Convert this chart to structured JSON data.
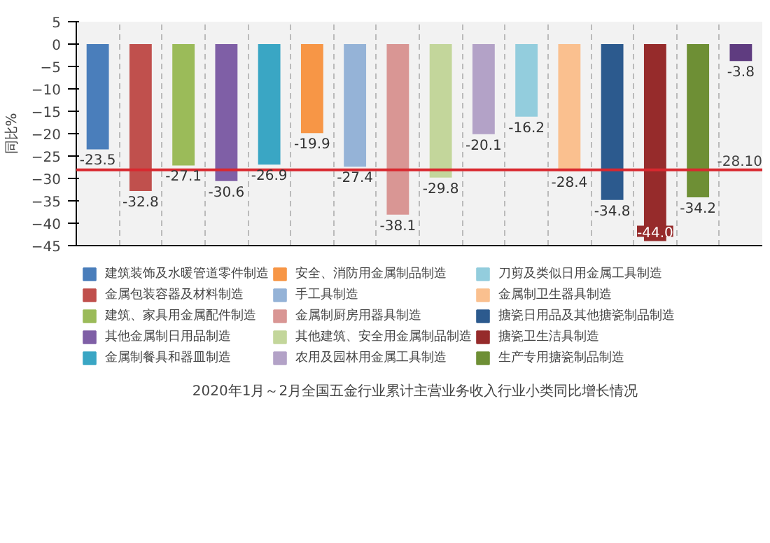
{
  "chart_data": {
    "type": "bar",
    "title": "2020年1月～2月全国五金行业累计主营业务收入行业小类同比增长情况",
    "ylabel": "同比%",
    "categories": [
      null
    ],
    "series": [
      {
        "name": "建筑装饰及水暖管道零件制造",
        "color": "#4a7ebb",
        "values": [
          -23.5
        ]
      },
      {
        "name": "金属包装容器及材料制造",
        "color": "#c0504d",
        "values": [
          -32.8
        ]
      },
      {
        "name": "建筑、家具用金属配件制造",
        "color": "#9bbb59",
        "values": [
          -27.1
        ]
      },
      {
        "name": "其他金属制日用品制造",
        "color": "#7f5fa6",
        "values": [
          -30.6
        ]
      },
      {
        "name": "金属制餐具和器皿制造",
        "color": "#3aa6c4",
        "values": [
          -26.9
        ]
      },
      {
        "name": "安全、消防用金属制品制造",
        "color": "#f79646",
        "values": [
          -19.9
        ]
      },
      {
        "name": "手工具制造",
        "color": "#95b3d7",
        "values": [
          -27.4
        ]
      },
      {
        "name": "金属制厨房用器具制造",
        "color": "#d99694",
        "values": [
          -38.1
        ]
      },
      {
        "name": "其他建筑、安全用金属制品制造",
        "color": "#c3d69b",
        "values": [
          -29.8
        ]
      },
      {
        "name": "农用及园林用金属工具制造",
        "color": "#b3a2c7",
        "values": [
          -20.1
        ]
      },
      {
        "name": "刀剪及类似日用金属工具制造",
        "color": "#93cddd",
        "values": [
          -16.2
        ]
      },
      {
        "name": "金属制卫生器具制造",
        "color": "#fac08f",
        "values": [
          -28.4
        ]
      },
      {
        "name": "搪瓷日用品及其他搪瓷制品制造",
        "color": "#2c5a8e",
        "values": [
          -34.8
        ]
      },
      {
        "name": "搪瓷卫生洁具制造",
        "color": "#962b2b",
        "values": [
          -44.0
        ],
        "value_labels": [
          "-44.0"
        ]
      },
      {
        "name": "生产专用搪瓷制品制造",
        "color": "#6e8f35",
        "values": [
          -34.2
        ]
      },
      {
        "color": "#5f3c80",
        "values": [
          -3.8
        ]
      }
    ],
    "ylim": [
      -45,
      5
    ],
    "yticks": [
      -45,
      -40,
      -35,
      -30,
      -25,
      -20,
      -15,
      -10,
      -5,
      0,
      5
    ],
    "ref_lines": [
      {
        "axis": "y",
        "value": -28.1,
        "label": "-28.10",
        "color": "#d9282f"
      }
    ],
    "data_labels": true,
    "grid": "x",
    "legend": "bottom",
    "tick_labels": "y"
  }
}
